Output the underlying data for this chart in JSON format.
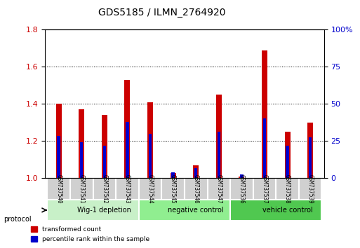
{
  "title": "GDS5185 / ILMN_2764920",
  "samples": [
    "GSM737540",
    "GSM737541",
    "GSM737542",
    "GSM737543",
    "GSM737544",
    "GSM737545",
    "GSM737546",
    "GSM737547",
    "GSM737536",
    "GSM737537",
    "GSM737538",
    "GSM737539"
  ],
  "red_values": [
    1.4,
    1.37,
    1.34,
    1.53,
    1.41,
    1.03,
    1.07,
    1.45,
    1.01,
    1.69,
    1.25,
    1.3
  ],
  "blue_values": [
    0.285,
    0.245,
    0.22,
    0.38,
    0.3,
    0.04,
    0.07,
    0.315,
    0.025,
    0.405,
    0.22,
    0.275
  ],
  "groups": [
    {
      "label": "Wig-1 depletion",
      "start": 0,
      "end": 4,
      "color": "#c8f0c8"
    },
    {
      "label": "negative control",
      "start": 4,
      "end": 8,
      "color": "#90ee90"
    },
    {
      "label": "vehicle control",
      "start": 8,
      "end": 12,
      "color": "#50c850"
    }
  ],
  "ylim_left": [
    1.0,
    1.8
  ],
  "ylim_right": [
    0,
    100
  ],
  "yticks_left": [
    1.0,
    1.2,
    1.4,
    1.6,
    1.8
  ],
  "yticks_right": [
    0,
    25,
    50,
    75,
    100
  ],
  "left_color": "#cc0000",
  "right_color": "#0000cc",
  "bar_width": 0.35,
  "background_color": "#ffffff",
  "plot_bg": "#ffffff"
}
